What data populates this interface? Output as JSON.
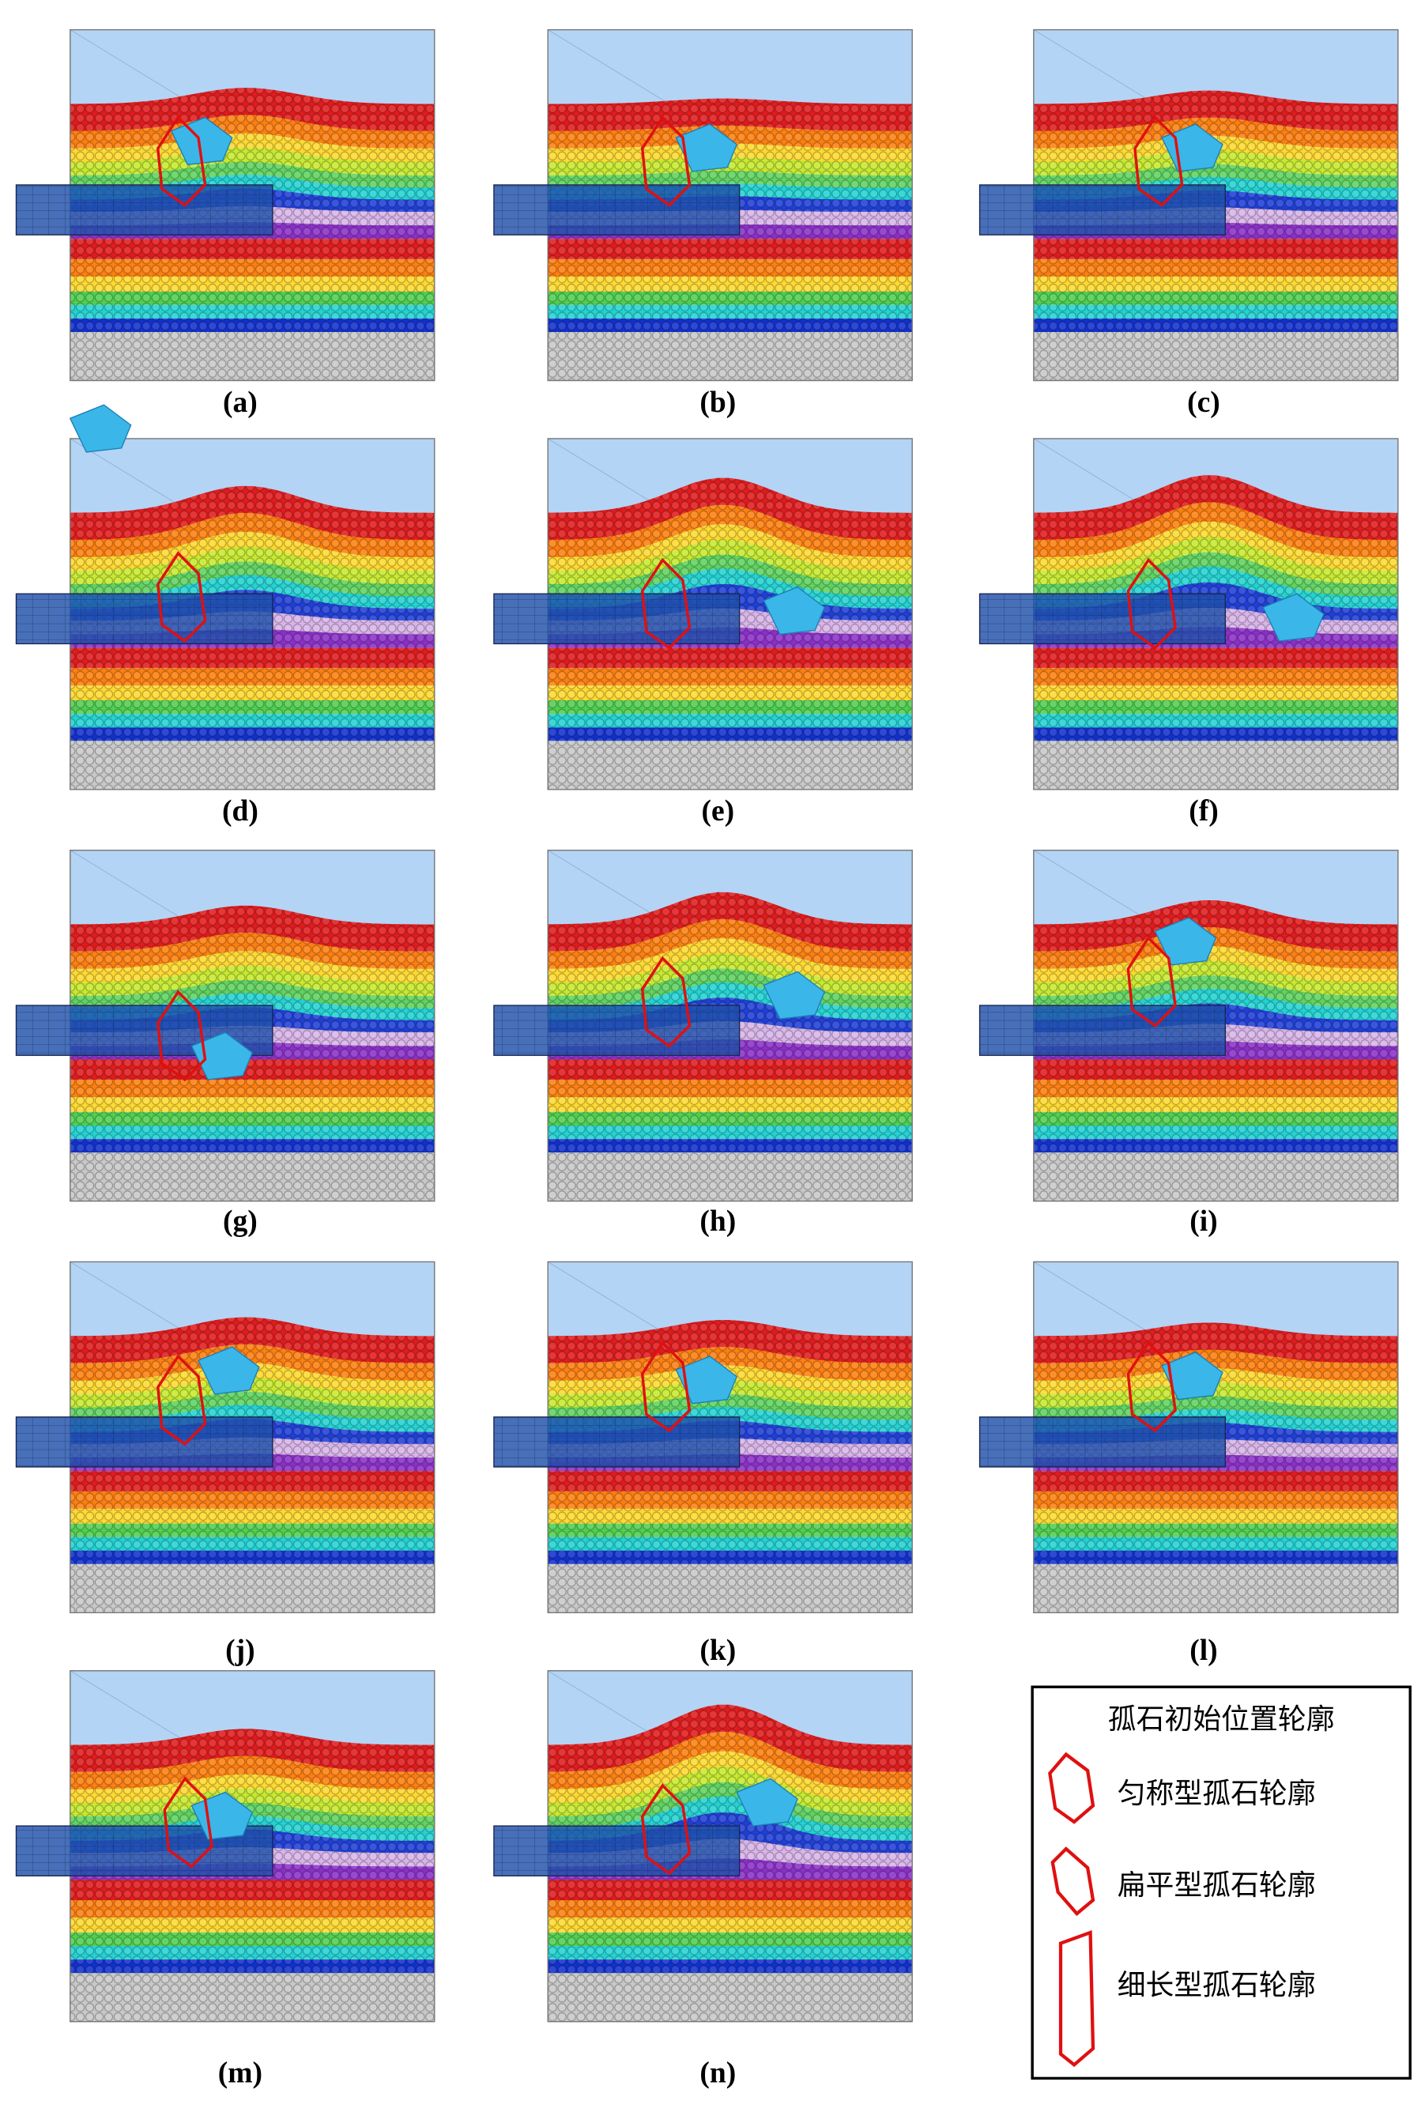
{
  "panels": [
    {
      "label": "(a)"
    },
    {
      "label": "(b)"
    },
    {
      "label": "(c)"
    },
    {
      "label": "(d)"
    },
    {
      "label": "(e)"
    },
    {
      "label": "(f)"
    },
    {
      "label": "(g)"
    },
    {
      "label": "(h)"
    },
    {
      "label": "(i)"
    },
    {
      "label": "(j)"
    },
    {
      "label": "(k)"
    },
    {
      "label": "(l)"
    },
    {
      "label": "(m)"
    },
    {
      "label": "(n)"
    }
  ],
  "legend": {
    "title": "孤石初始位置轮廓",
    "items": [
      "匀称型孤石轮廓",
      "扁平型孤石轮廓",
      "细长型孤石轮廓"
    ]
  }
}
